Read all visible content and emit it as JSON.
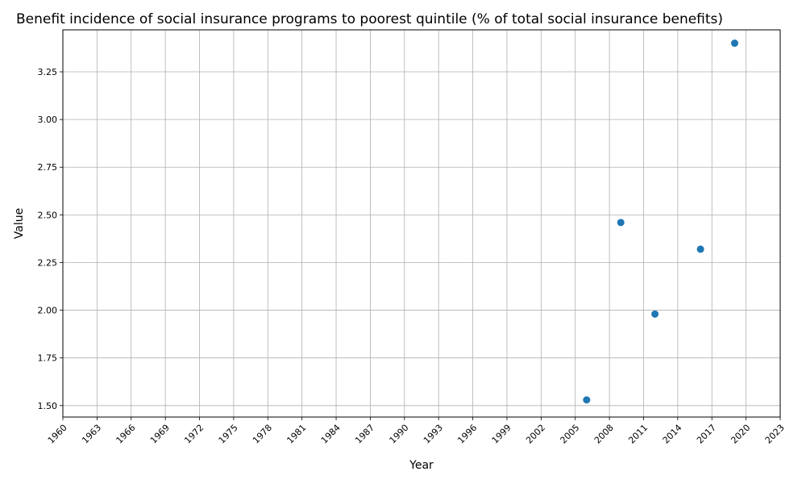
{
  "chart_data": {
    "type": "scatter",
    "title": "Benefit incidence of social insurance programs to poorest quintile (% of total social insurance benefits)",
    "xlabel": "Year",
    "ylabel": "Value",
    "xlim": [
      1960,
      2023
    ],
    "ylim": [
      1.44,
      3.47
    ],
    "x_ticks": [
      1960,
      1963,
      1966,
      1969,
      1972,
      1975,
      1978,
      1981,
      1984,
      1987,
      1990,
      1993,
      1996,
      1999,
      2002,
      2005,
      2008,
      2011,
      2014,
      2017,
      2020,
      2023
    ],
    "y_ticks": [
      1.5,
      1.75,
      2.0,
      2.25,
      2.5,
      2.75,
      3.0,
      3.25
    ],
    "y_tick_labels": [
      "1.50",
      "1.75",
      "2.00",
      "2.25",
      "2.50",
      "2.75",
      "3.00",
      "3.25"
    ],
    "grid": true,
    "marker_color": "#1f77b4",
    "series": [
      {
        "x": [
          2006,
          2009,
          2012,
          2016,
          2019
        ],
        "y": [
          1.53,
          2.46,
          1.98,
          2.32,
          3.4
        ]
      }
    ]
  }
}
